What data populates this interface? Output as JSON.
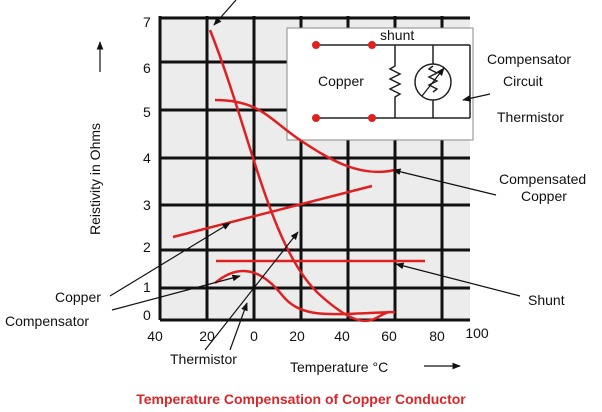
{
  "title": "Temperature Compensation of Copper Conductor",
  "axes": {
    "y_label": "Reistivity in Ohms",
    "x_label": "Temperature °C",
    "y_ticks": [
      "7",
      "6",
      "5",
      "4",
      "3",
      "2",
      "1",
      "0"
    ],
    "x_ticks": [
      "40",
      "20",
      "0",
      "20",
      "40",
      "60",
      "80",
      "100"
    ]
  },
  "inset": {
    "shunt": "shunt",
    "copper": "Copper"
  },
  "labels": {
    "compensator_circuit": [
      "Compensator",
      "Circuit"
    ],
    "thermistor_right": "Thermistor",
    "compensated_copper": [
      "Compensated",
      "Copper"
    ],
    "shunt": "Shunt",
    "copper_compensator": [
      "Copper",
      "Compensator"
    ],
    "thermistor_bottom": "Thermistor"
  }
}
